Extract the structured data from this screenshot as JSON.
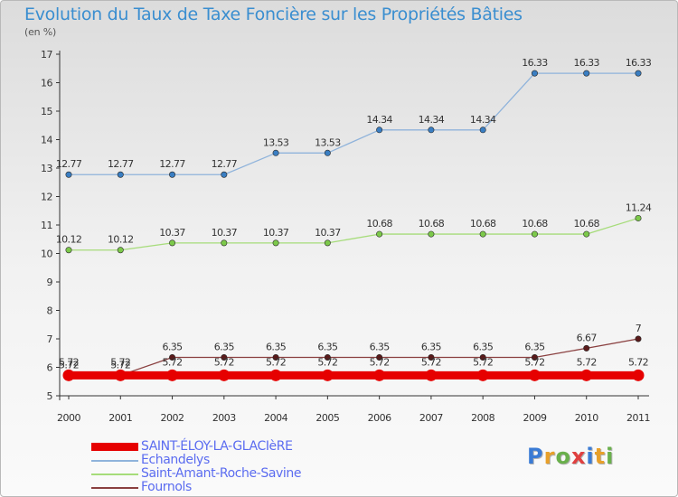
{
  "page": {
    "title": "Evolution du Taux de Taxe Foncière sur les Propriétés Bâties",
    "unit": "(en %)",
    "brand": "Proxiti",
    "brand_colors": [
      "#3a7bd5",
      "#e8a02a",
      "#6ab04c",
      "#e04040",
      "#3a7bd5",
      "#e8a02a",
      "#6ab04c"
    ]
  },
  "chart_data": {
    "type": "line",
    "title": "Evolution du Taux de Taxe Foncière sur les Propriétés Bâties",
    "ylabel": "(en %)",
    "xlabel": "",
    "categories": [
      "2000",
      "2001",
      "2002",
      "2003",
      "2004",
      "2005",
      "2006",
      "2007",
      "2008",
      "2009",
      "2010",
      "2011"
    ],
    "ylim": [
      5,
      17
    ],
    "yticks": [
      5,
      6,
      7,
      8,
      9,
      10,
      11,
      12,
      13,
      14,
      15,
      16,
      17
    ],
    "grid": false,
    "legend_position": "bottom-left",
    "series": [
      {
        "name": "SAINT-ÉLOY-LA-GLACIèRE",
        "color": "#e60000",
        "emphasis": "thick",
        "values": [
          5.72,
          5.72,
          5.72,
          5.72,
          5.72,
          5.72,
          5.72,
          5.72,
          5.72,
          5.72,
          5.72,
          5.72
        ],
        "labels": [
          "5.72",
          "5.72",
          "5.72",
          "5.72",
          "5.72",
          "5.72",
          "5.72",
          "5.72",
          "5.72",
          "5.72",
          "5.72",
          "5.72"
        ]
      },
      {
        "name": "Echandelys",
        "color": "#8fb3db",
        "marker": "#3a7ec2",
        "values": [
          12.77,
          12.77,
          12.77,
          12.77,
          13.53,
          13.53,
          14.34,
          14.34,
          14.34,
          16.33,
          16.33,
          16.33
        ],
        "labels": [
          "12.77",
          "12.77",
          "12.77",
          "12.77",
          "13.53",
          "13.53",
          "14.34",
          "14.34",
          "14.34",
          "16.33",
          "16.33",
          "16.33"
        ]
      },
      {
        "name": "Saint-Amant-Roche-Savine",
        "color": "#a6dc7a",
        "marker": "#7cc94a",
        "values": [
          10.12,
          10.12,
          10.37,
          10.37,
          10.37,
          10.37,
          10.68,
          10.68,
          10.68,
          10.68,
          10.68,
          11.24
        ],
        "labels": [
          "10.12",
          "10.12",
          "10.37",
          "10.37",
          "10.37",
          "10.37",
          "10.68",
          "10.68",
          "10.68",
          "10.68",
          "10.68",
          "11.24"
        ]
      },
      {
        "name": "Fournols",
        "color": "#8a4040",
        "marker": "#5a1a1a",
        "values": [
          5.72,
          5.72,
          6.35,
          6.35,
          6.35,
          6.35,
          6.35,
          6.35,
          6.35,
          6.35,
          6.67,
          7
        ],
        "labels": [
          "5.72",
          "5.72",
          "6.35",
          "6.35",
          "6.35",
          "6.35",
          "6.35",
          "6.35",
          "6.35",
          "6.35",
          "6.67",
          "7"
        ]
      }
    ]
  }
}
